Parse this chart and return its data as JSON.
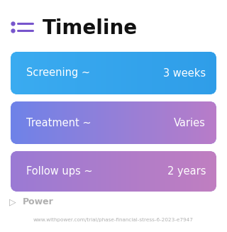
{
  "title": "Timeline",
  "title_fontsize": 20,
  "background_color": "#ffffff",
  "rows": [
    {
      "label": "Screening ~",
      "value": "3 weeks",
      "grad_left": "#3aabf0",
      "grad_right": "#2f9de8"
    },
    {
      "label": "Treatment ~",
      "value": "Varies",
      "grad_left": "#6e82e8",
      "grad_right": "#b87cc8"
    },
    {
      "label": "Follow ups ~",
      "value": "2 years",
      "grad_left": "#9a7ad4",
      "grad_right": "#c07ec0"
    }
  ],
  "row_text_color": "#ffffff",
  "row_label_fontsize": 10.5,
  "row_value_fontsize": 10.5,
  "icon_color": "#7755cc",
  "footer_logo_text": "Power",
  "footer_url": "www.withpower.com/trial/phase-financial-stress-6-2023-e7947",
  "footer_color": "#b0b0b0",
  "footer_fontsize": 5.2
}
